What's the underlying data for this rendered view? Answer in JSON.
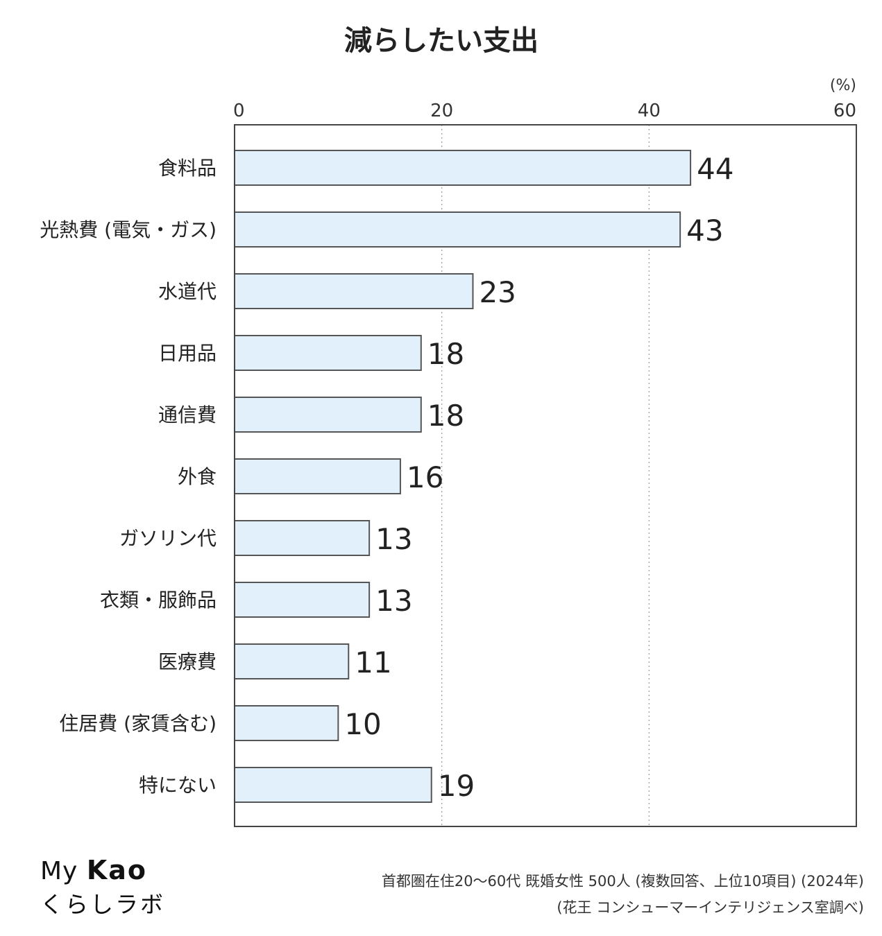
{
  "chart_data": {
    "type": "bar",
    "orientation": "horizontal",
    "title": "減らしたい支出",
    "unit": "(%)",
    "xlim": [
      0,
      60
    ],
    "x_ticks": [
      0,
      20,
      40,
      60
    ],
    "grid": "vertical dotted at 20 and 40",
    "categories": [
      "食料品",
      "光熱費 (電気・ガス)",
      "水道代",
      "日用品",
      "通信費",
      "外食",
      "ガソリン代",
      "衣類・服飾品",
      "医療費",
      "住居費 (家賃含む)",
      "特にない"
    ],
    "values": [
      44,
      43,
      23,
      18,
      18,
      16,
      13,
      13,
      11,
      10,
      19
    ],
    "data_labels": [
      "44",
      "43",
      "23",
      "18",
      "18",
      "16",
      "13",
      "13",
      "11",
      "10",
      "19"
    ],
    "bar_color": "#e1f0fa",
    "bar_stroke": "#555555"
  },
  "footer": {
    "logo_line1_prefix": "My",
    "logo_line1_brand": "Kao",
    "logo_line2": "くらしラボ",
    "note_line1": "首都圏在住20〜60代 既婚女性 500人 (複数回答、上位10項目) (2024年)",
    "note_line2": "(花王 コンシューマーインテリジェンス室調べ)"
  }
}
